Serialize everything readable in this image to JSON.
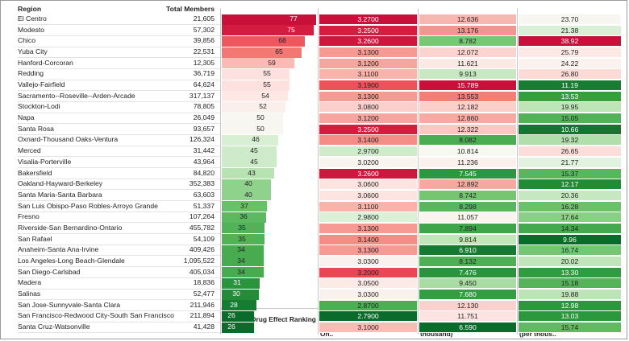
{
  "headers": {
    "region": "Region",
    "members": "Total Members",
    "ranking": "Adverse Drug Effect Ranking",
    "classes": "Avg # of Therapeutic Classes among Member with at Least On..",
    "edv": "Percent of Members w/ any ADE EDV in Group (per thousand)",
    "ip": "Percent of Members w/ any ADE IP Discharge in Group (per thous.."
  },
  "chart_data": {
    "type": "table",
    "columns": [
      "Region",
      "Total Members",
      "Adverse Drug Effect Ranking",
      "Avg # of Therapeutic Classes among Member with at Least On..",
      "Percent of Members w/ any ADE EDV in Group (per thousand)",
      "Percent of Members w/ any ADE IP Discharge in Group (per thous.."
    ],
    "rows": [
      {
        "region": "El Centro",
        "members": "21,605",
        "rank": 77,
        "classes": "3.2700",
        "edv": "12.636",
        "ip": "23.70"
      },
      {
        "region": "Modesto",
        "members": "57,302",
        "rank": 75,
        "classes": "3.2500",
        "edv": "13.176",
        "ip": "21.38"
      },
      {
        "region": "Chico",
        "members": "39,856",
        "rank": 68,
        "classes": "3.2600",
        "edv": "8.782",
        "ip": "38.92"
      },
      {
        "region": "Yuba City",
        "members": "22,531",
        "rank": 65,
        "classes": "3.1300",
        "edv": "12.072",
        "ip": "25.79"
      },
      {
        "region": "Hanford-Corcoran",
        "members": "12,305",
        "rank": 59,
        "classes": "3.1200",
        "edv": "11.621",
        "ip": "24.22"
      },
      {
        "region": "Redding",
        "members": "36,719",
        "rank": 55,
        "classes": "3.1100",
        "edv": "9.913",
        "ip": "26.80"
      },
      {
        "region": "Vallejo-Fairfield",
        "members": "64,624",
        "rank": 55,
        "classes": "3.1900",
        "edv": "15.789",
        "ip": "11.19"
      },
      {
        "region": "Sacramento--Roseville--Arden-Arcade",
        "members": "317,137",
        "rank": 54,
        "classes": "3.1300",
        "edv": "13.553",
        "ip": "13.53"
      },
      {
        "region": "Stockton-Lodi",
        "members": "78,805",
        "rank": 52,
        "classes": "3.0800",
        "edv": "12.182",
        "ip": "19.95"
      },
      {
        "region": "Napa",
        "members": "26,049",
        "rank": 50,
        "classes": "3.1200",
        "edv": "12.860",
        "ip": "15.05"
      },
      {
        "region": "Santa Rosa",
        "members": "93,657",
        "rank": 50,
        "classes": "3.2500",
        "edv": "12.322",
        "ip": "10.66"
      },
      {
        "region": "Oxnard-Thousand Oaks-Ventura",
        "members": "126,324",
        "rank": 46,
        "classes": "3.1400",
        "edv": "8.082",
        "ip": "19.32"
      },
      {
        "region": "Merced",
        "members": "31,442",
        "rank": 45,
        "classes": "2.9700",
        "edv": "10.814",
        "ip": "26.65"
      },
      {
        "region": "Visalia-Porterville",
        "members": "43,964",
        "rank": 45,
        "classes": "3.0200",
        "edv": "11.236",
        "ip": "21.77"
      },
      {
        "region": "Bakersfield",
        "members": "84,820",
        "rank": 43,
        "classes": "3.2600",
        "edv": "7.545",
        "ip": "15.37"
      },
      {
        "region": "Oakland-Hayward-Berkeley",
        "members": "352,383",
        "rank": 40,
        "classes": "3.0600",
        "edv": "12.892",
        "ip": "12.17"
      },
      {
        "region": "Santa Maria-Santa Barbara",
        "members": "63,603",
        "rank": 40,
        "classes": "3.0600",
        "edv": "8.742",
        "ip": "20.36"
      },
      {
        "region": "San Luis Obispo-Paso Robles-Arroyo Grande",
        "members": "51,337",
        "rank": 37,
        "classes": "3.1100",
        "edv": "8.298",
        "ip": "16.28"
      },
      {
        "region": "Fresno",
        "members": "107,264",
        "rank": 36,
        "classes": "2.9800",
        "edv": "11.057",
        "ip": "17.64"
      },
      {
        "region": "Riverside-San Bernardino-Ontario",
        "members": "455,782",
        "rank": 35,
        "classes": "3.1300",
        "edv": "7.894",
        "ip": "14.34"
      },
      {
        "region": "San Rafael",
        "members": "54,109",
        "rank": 35,
        "classes": "3.1400",
        "edv": "9.814",
        "ip": "9.96"
      },
      {
        "region": "Anaheim-Santa Ana-Irvine",
        "members": "409,426",
        "rank": 34,
        "classes": "3.1300",
        "edv": "6.910",
        "ip": "16.74"
      },
      {
        "region": "Los Angeles-Long Beach-Glendale",
        "members": "1,095,522",
        "rank": 34,
        "classes": "3.0300",
        "edv": "8.132",
        "ip": "20.02"
      },
      {
        "region": "San Diego-Carlsbad",
        "members": "405,034",
        "rank": 34,
        "classes": "3.2000",
        "edv": "7.476",
        "ip": "13.30"
      },
      {
        "region": "Madera",
        "members": "18,836",
        "rank": 31,
        "classes": "3.0500",
        "edv": "9.450",
        "ip": "15.18"
      },
      {
        "region": "Salinas",
        "members": "52,477",
        "rank": 30,
        "classes": "3.0300",
        "edv": "7.680",
        "ip": "19.88"
      },
      {
        "region": "San Jose-Sunnyvale-Santa Clara",
        "members": "211,946",
        "rank": 28,
        "classes": "2.8700",
        "edv": "12.130",
        "ip": "12.98"
      },
      {
        "region": "San Francisco-Redwood City-South San Francisco",
        "members": "211,894",
        "rank": 26,
        "classes": "2.7900",
        "edv": "11.751",
        "ip": "13.03"
      },
      {
        "region": "Santa Cruz-Watsonville",
        "members": "41,428",
        "rank": 26,
        "classes": "3.1000",
        "edv": "6.590",
        "ip": "15.74"
      }
    ]
  },
  "colors": {
    "scale": [
      "#0b6b2b",
      "#2e9a3e",
      "#6cc36a",
      "#b7e2b1",
      "#f6fbf4",
      "#fde7e5",
      "#f8b3ab",
      "#f2706b",
      "#e83348",
      "#c8103a"
    ]
  }
}
